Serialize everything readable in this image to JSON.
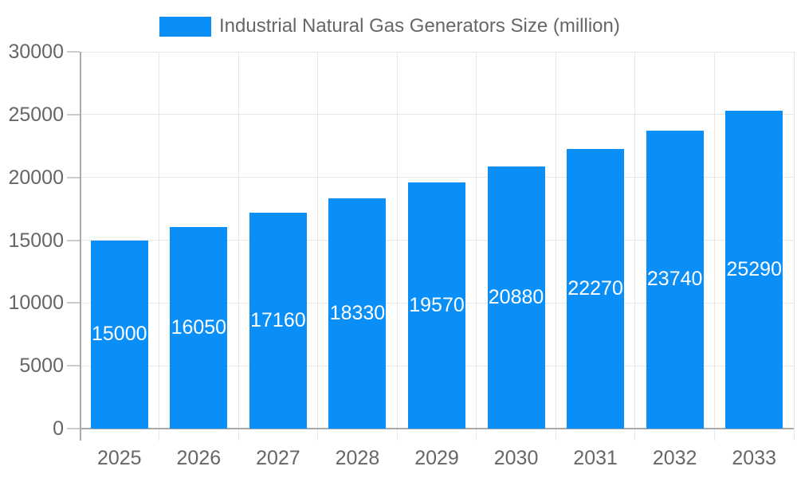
{
  "chart_data": {
    "type": "bar",
    "title": "Industrial Natural Gas Generators Size (million)",
    "legend": {
      "label": "Industrial Natural Gas Generators Size (million)",
      "position": "top"
    },
    "categories": [
      "2025",
      "2026",
      "2027",
      "2028",
      "2029",
      "2030",
      "2031",
      "2032",
      "2033"
    ],
    "values": [
      15000,
      16050,
      17160,
      18330,
      19570,
      20880,
      22270,
      23740,
      25290
    ],
    "xlabel": "",
    "ylabel": "",
    "ylim": [
      0,
      30000
    ],
    "yticks": [
      0,
      5000,
      10000,
      15000,
      20000,
      25000,
      30000
    ],
    "grid": true,
    "colors": {
      "bar": "#0a8ff8",
      "value_label": "#ffffff",
      "axis_label": "#666666",
      "legend_label": "#666666",
      "gridline": "#e6e6e6",
      "axis_line": "#a9a9a9",
      "tick": "#cccccc",
      "background": "#ffffff"
    }
  }
}
